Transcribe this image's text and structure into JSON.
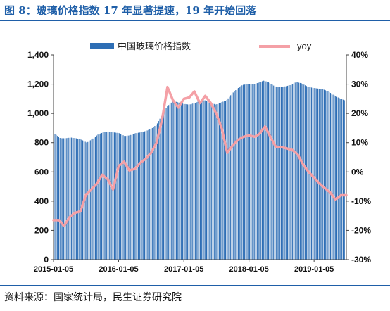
{
  "header": {
    "title": "图 8：玻璃价格指数 17 年显著提速，19 年开始回落"
  },
  "footer": {
    "source": "资料来源：国家统计局，民生证券研究院"
  },
  "colors": {
    "title": "#1f5fa8",
    "bar": "#2e6eb5",
    "line": "#f4a0a6"
  },
  "chart_data": {
    "type": "bar",
    "legend_position": "top",
    "grid": false,
    "x_ticks": [
      "2015-01-05",
      "2016-01-05",
      "2017-01-05",
      "2018-01-05",
      "2019-01-05"
    ],
    "x_range": [
      "2015-01-05",
      "2019-07-05"
    ],
    "y_left": {
      "range": [
        0,
        1400
      ],
      "ticks": [
        "0",
        "200",
        "400",
        "600",
        "800",
        "1,000",
        "1,200",
        "1,400"
      ]
    },
    "y_right": {
      "range": [
        -30,
        40
      ],
      "ticks": [
        "-30%",
        "-20%",
        "-10%",
        "0%",
        "10%",
        "20%",
        "30%",
        "40%"
      ]
    },
    "series": [
      {
        "name": "中国玻璃价格指数",
        "type": "bar",
        "axis": "left",
        "values": [
          [
            "2015-01-05",
            860
          ],
          [
            "2015-02-05",
            830
          ],
          [
            "2015-03-05",
            830
          ],
          [
            "2015-04-05",
            835
          ],
          [
            "2015-05-05",
            830
          ],
          [
            "2015-06-05",
            820
          ],
          [
            "2015-07-05",
            800
          ],
          [
            "2015-08-05",
            825
          ],
          [
            "2015-09-05",
            855
          ],
          [
            "2015-10-05",
            870
          ],
          [
            "2015-11-05",
            875
          ],
          [
            "2015-12-05",
            870
          ],
          [
            "2016-01-05",
            865
          ],
          [
            "2016-02-05",
            845
          ],
          [
            "2016-03-05",
            850
          ],
          [
            "2016-04-05",
            865
          ],
          [
            "2016-05-05",
            870
          ],
          [
            "2016-06-05",
            880
          ],
          [
            "2016-07-05",
            895
          ],
          [
            "2016-08-05",
            925
          ],
          [
            "2016-09-05",
            995
          ],
          [
            "2016-10-05",
            1050
          ],
          [
            "2016-11-05",
            1085
          ],
          [
            "2016-12-05",
            1075
          ],
          [
            "2017-01-05",
            1065
          ],
          [
            "2017-02-05",
            1060
          ],
          [
            "2017-03-05",
            1070
          ],
          [
            "2017-04-05",
            1085
          ],
          [
            "2017-05-05",
            1090
          ],
          [
            "2017-06-05",
            1075
          ],
          [
            "2017-07-05",
            1060
          ],
          [
            "2017-08-05",
            1075
          ],
          [
            "2017-09-05",
            1090
          ],
          [
            "2017-10-05",
            1135
          ],
          [
            "2017-11-05",
            1170
          ],
          [
            "2017-12-05",
            1195
          ],
          [
            "2018-01-05",
            1200
          ],
          [
            "2018-02-05",
            1200
          ],
          [
            "2018-03-05",
            1210
          ],
          [
            "2018-04-05",
            1225
          ],
          [
            "2018-05-05",
            1210
          ],
          [
            "2018-06-05",
            1185
          ],
          [
            "2018-07-05",
            1180
          ],
          [
            "2018-08-05",
            1185
          ],
          [
            "2018-09-05",
            1195
          ],
          [
            "2018-10-05",
            1215
          ],
          [
            "2018-11-05",
            1205
          ],
          [
            "2018-12-05",
            1185
          ],
          [
            "2019-01-05",
            1175
          ],
          [
            "2019-02-05",
            1170
          ],
          [
            "2019-03-05",
            1165
          ],
          [
            "2019-04-05",
            1150
          ],
          [
            "2019-05-05",
            1125
          ],
          [
            "2019-06-05",
            1105
          ],
          [
            "2019-07-05",
            1090
          ]
        ]
      },
      {
        "name": "yoy",
        "type": "line",
        "axis": "right",
        "unit": "%",
        "values": [
          [
            "2015-01-05",
            -16.5
          ],
          [
            "2015-02-05",
            -16.5
          ],
          [
            "2015-03-05",
            -18.5
          ],
          [
            "2015-04-05",
            -15.5
          ],
          [
            "2015-05-05",
            -14.0
          ],
          [
            "2015-06-05",
            -13.5
          ],
          [
            "2015-07-05",
            -8.0
          ],
          [
            "2015-08-05",
            -6.0
          ],
          [
            "2015-09-05",
            -4.0
          ],
          [
            "2015-10-05",
            -1.0
          ],
          [
            "2015-11-05",
            -2.5
          ],
          [
            "2015-12-05",
            -6.0
          ],
          [
            "2016-01-05",
            2.0
          ],
          [
            "2016-02-05",
            3.5
          ],
          [
            "2016-03-05",
            0.5
          ],
          [
            "2016-04-05",
            1.0
          ],
          [
            "2016-05-05",
            3.0
          ],
          [
            "2016-06-05",
            4.5
          ],
          [
            "2016-07-05",
            6.5
          ],
          [
            "2016-08-05",
            10.0
          ],
          [
            "2016-09-05",
            18.0
          ],
          [
            "2016-10-05",
            29.0
          ],
          [
            "2016-11-05",
            24.5
          ],
          [
            "2016-12-05",
            22.0
          ],
          [
            "2017-01-05",
            25.0
          ],
          [
            "2017-02-05",
            25.5
          ],
          [
            "2017-03-05",
            27.5
          ],
          [
            "2017-04-05",
            23.5
          ],
          [
            "2017-05-05",
            26.0
          ],
          [
            "2017-06-05",
            23.5
          ],
          [
            "2017-07-05",
            20.0
          ],
          [
            "2017-08-05",
            15.0
          ],
          [
            "2017-09-05",
            6.5
          ],
          [
            "2017-10-05",
            9.0
          ],
          [
            "2017-11-05",
            11.0
          ],
          [
            "2017-12-05",
            12.0
          ],
          [
            "2018-01-05",
            12.5
          ],
          [
            "2018-02-05",
            12.0
          ],
          [
            "2018-03-05",
            13.0
          ],
          [
            "2018-04-05",
            15.5
          ],
          [
            "2018-05-05",
            12.0
          ],
          [
            "2018-06-05",
            8.5
          ],
          [
            "2018-07-05",
            8.5
          ],
          [
            "2018-08-05",
            8.0
          ],
          [
            "2018-09-05",
            7.5
          ],
          [
            "2018-10-05",
            6.0
          ],
          [
            "2018-11-05",
            2.5
          ],
          [
            "2018-12-05",
            0.0
          ],
          [
            "2019-01-05",
            -2.0
          ],
          [
            "2019-02-05",
            -4.0
          ],
          [
            "2019-03-05",
            -5.5
          ],
          [
            "2019-04-05",
            -7.0
          ],
          [
            "2019-05-05",
            -9.5
          ],
          [
            "2019-06-05",
            -8.0
          ],
          [
            "2019-07-05",
            -8.0
          ]
        ]
      }
    ]
  }
}
